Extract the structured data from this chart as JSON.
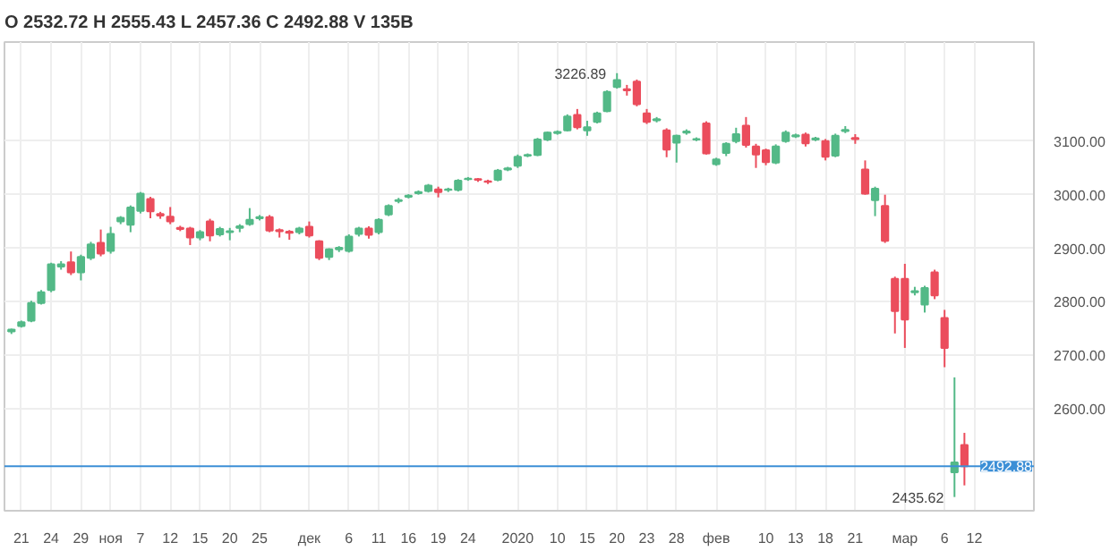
{
  "chart_data": {
    "type": "candlestick",
    "title": "O 2532.72  H 2555.43  L 2457.36  C 2492.88  V 135B",
    "categories": [
      null,
      "21",
      null,
      null,
      "24",
      null,
      null,
      "29",
      null,
      null,
      "ноя",
      null,
      null,
      "7",
      null,
      null,
      "12",
      null,
      null,
      "15",
      null,
      null,
      "20",
      null,
      null,
      "25",
      null,
      null,
      null,
      null,
      "дек",
      null,
      null,
      null,
      "6",
      null,
      null,
      "11",
      null,
      null,
      "16",
      null,
      null,
      "19",
      null,
      null,
      "24",
      null,
      null,
      null,
      null,
      "2020",
      null,
      null,
      null,
      "10",
      null,
      null,
      "15",
      null,
      null,
      "20",
      null,
      null,
      "23",
      null,
      null,
      "28",
      null,
      null,
      null,
      "фев",
      null,
      null,
      null,
      null,
      "10",
      null,
      null,
      "13",
      null,
      null,
      "18",
      null,
      null,
      "21",
      null,
      null,
      null,
      null,
      "мар",
      null,
      null,
      null,
      "6",
      null,
      null,
      "12"
    ],
    "ohlc": [
      [
        2745,
        2750,
        2740,
        2748
      ],
      [
        2755,
        2765,
        2752,
        2762
      ],
      [
        2765,
        2802,
        2762,
        2798
      ],
      [
        2798,
        2822,
        2795,
        2818
      ],
      [
        2822,
        2873,
        2818,
        2870
      ],
      [
        2866,
        2876,
        2860,
        2870
      ],
      [
        2874,
        2894,
        2850,
        2855
      ],
      [
        2855,
        2888,
        2840,
        2884
      ],
      [
        2882,
        2912,
        2878,
        2907
      ],
      [
        2910,
        2935,
        2885,
        2890
      ],
      [
        2895,
        2940,
        2890,
        2927
      ],
      [
        2950,
        2960,
        2945,
        2957
      ],
      [
        2944,
        2980,
        2930,
        2976
      ],
      [
        2970,
        3005,
        2965,
        3002
      ],
      [
        2992,
        2996,
        2956,
        2969
      ],
      [
        2964,
        2968,
        2955,
        2961
      ],
      [
        2959,
        2977,
        2945,
        2950
      ],
      [
        2938,
        2942,
        2932,
        2936
      ],
      [
        2937,
        2940,
        2906,
        2920
      ],
      [
        2920,
        2934,
        2915,
        2930
      ],
      [
        2950,
        2955,
        2913,
        2924
      ],
      [
        2926,
        2940,
        2922,
        2936
      ],
      [
        2930,
        2938,
        2915,
        2932
      ],
      [
        2938,
        2945,
        2930,
        2941
      ],
      [
        2945,
        2975,
        2942,
        2953
      ],
      [
        2956,
        2962,
        2952,
        2958
      ],
      [
        2958,
        2962,
        2930,
        2933
      ],
      [
        2934,
        2937,
        2920,
        2932
      ],
      [
        2931,
        2934,
        2916,
        2929
      ],
      [
        2930,
        2940,
        2926,
        2937
      ],
      [
        2940,
        2950,
        2920,
        2924
      ],
      [
        2913,
        2915,
        2878,
        2882
      ],
      [
        2884,
        2900,
        2878,
        2898
      ],
      [
        2898,
        2904,
        2893,
        2901
      ],
      [
        2895,
        2926,
        2892,
        2922
      ],
      [
        2927,
        2940,
        2922,
        2937
      ],
      [
        2937,
        2941,
        2918,
        2925
      ],
      [
        2930,
        2956,
        2926,
        2953
      ],
      [
        2963,
        2982,
        2960,
        2979
      ],
      [
        2988,
        2994,
        2984,
        2990
      ],
      [
        2996,
        3001,
        2993,
        2998
      ],
      [
        3003,
        3008,
        3000,
        3005
      ],
      [
        3007,
        3020,
        3004,
        3017
      ],
      [
        3010,
        3015,
        2995,
        3005
      ],
      [
        3009,
        3013,
        3005,
        3010
      ],
      [
        3009,
        3029,
        3006,
        3026
      ],
      [
        3029,
        3033,
        3026,
        3030
      ],
      [
        3029,
        3031,
        3024,
        3028
      ],
      [
        3025,
        3028,
        3020,
        3024
      ],
      [
        3028,
        3048,
        3025,
        3045
      ],
      [
        3047,
        3052,
        3044,
        3049
      ],
      [
        3054,
        3075,
        3050,
        3071
      ],
      [
        3073,
        3077,
        3070,
        3074
      ],
      [
        3074,
        3106,
        3072,
        3103
      ],
      [
        3103,
        3118,
        3100,
        3116
      ],
      [
        3115,
        3120,
        3112,
        3117
      ],
      [
        3120,
        3150,
        3118,
        3146
      ],
      [
        3149,
        3160,
        3122,
        3126
      ],
      [
        3120,
        3138,
        3110,
        3126
      ],
      [
        3136,
        3155,
        3133,
        3152
      ],
      [
        3156,
        3195,
        3154,
        3192
      ],
      [
        3201,
        3226.89,
        3198,
        3214
      ],
      [
        3197,
        3205,
        3185,
        3195
      ],
      [
        3211,
        3215,
        3165,
        3169
      ],
      [
        3152,
        3160,
        3132,
        3136
      ],
      [
        3139,
        3145,
        3135,
        3141
      ],
      [
        3120,
        3124,
        3070,
        3084
      ],
      [
        3097,
        3112,
        3060,
        3110
      ],
      [
        3116,
        3122,
        3112,
        3118
      ],
      [
        3103,
        3107,
        3100,
        3104
      ],
      [
        3133,
        3137,
        3075,
        3077
      ],
      [
        3057,
        3069,
        3054,
        3066
      ],
      [
        3078,
        3098,
        3072,
        3095
      ],
      [
        3100,
        3125,
        3096,
        3113
      ],
      [
        3129,
        3145,
        3088,
        3093
      ],
      [
        3090,
        3095,
        3050,
        3075
      ],
      [
        3083,
        3086,
        3055,
        3061
      ],
      [
        3060,
        3094,
        3057,
        3090
      ],
      [
        3100,
        3120,
        3097,
        3116
      ],
      [
        3109,
        3114,
        3106,
        3111
      ],
      [
        3112,
        3116,
        3090,
        3096
      ],
      [
        3103,
        3108,
        3100,
        3105
      ],
      [
        3100,
        3104,
        3064,
        3071
      ],
      [
        3073,
        3114,
        3070,
        3110
      ],
      [
        3119,
        3128,
        3115,
        3121
      ],
      [
        3106,
        3113,
        3095,
        3104
      ],
      [
        3047,
        3064,
        3000,
        3002
      ],
      [
        2990,
        3015,
        2960,
        3011
      ],
      [
        2979,
        3000,
        2910,
        2914
      ],
      [
        2843,
        2847,
        2741,
        2783
      ],
      [
        2843,
        2871,
        2714,
        2767
      ],
      [
        2818,
        2828,
        2812,
        2820
      ],
      [
        2795,
        2830,
        2780,
        2826
      ],
      [
        2855,
        2860,
        2805,
        2812
      ],
      [
        2770,
        2785,
        2678,
        2714
      ],
      [
        2482,
        2659,
        2435.62,
        2500
      ],
      [
        2532.72,
        2555.43,
        2457.36,
        2492.88
      ],
      null
    ],
    "colors": [
      "#53b987",
      "#53b987",
      "#53b987",
      "#53b987",
      "#53b987",
      "#53b987",
      "#eb4d5c",
      "#53b987",
      "#53b987",
      "#eb4d5c",
      "#53b987",
      "#53b987",
      "#53b987",
      "#53b987",
      "#eb4d5c",
      "#eb4d5c",
      "#eb4d5c",
      "#eb4d5c",
      "#eb4d5c",
      "#53b987",
      "#eb4d5c",
      "#53b987",
      "#53b987",
      "#53b987",
      "#53b987",
      "#53b987",
      "#eb4d5c",
      "#eb4d5c",
      "#eb4d5c",
      "#53b987",
      "#eb4d5c",
      "#eb4d5c",
      "#53b987",
      "#53b987",
      "#53b987",
      "#53b987",
      "#eb4d5c",
      "#53b987",
      "#53b987",
      "#53b987",
      "#53b987",
      "#53b987",
      "#53b987",
      "#eb4d5c",
      "#53b987",
      "#53b987",
      "#53b987",
      "#eb4d5c",
      "#eb4d5c",
      "#53b987",
      "#53b987",
      "#53b987",
      "#53b987",
      "#53b987",
      "#53b987",
      "#53b987",
      "#53b987",
      "#eb4d5c",
      "#53b987",
      "#53b987",
      "#53b987",
      "#53b987",
      "#eb4d5c",
      "#eb4d5c",
      "#eb4d5c",
      "#53b987",
      "#eb4d5c",
      "#53b987",
      "#53b987",
      "#53b987",
      "#eb4d5c",
      "#53b987",
      "#53b987",
      "#53b987",
      "#eb4d5c",
      "#eb4d5c",
      "#eb4d5c",
      "#53b987",
      "#53b987",
      "#53b987",
      "#eb4d5c",
      "#53b987",
      "#eb4d5c",
      "#53b987",
      "#53b987",
      "#eb4d5c",
      "#eb4d5c",
      "#53b987",
      "#eb4d5c",
      "#eb4d5c",
      "#eb4d5c",
      "#53b987",
      "#53b987",
      "#eb4d5c",
      "#eb4d5c",
      "#53b987",
      "#eb4d5c",
      null
    ],
    "ylim": [
      2410,
      3285
    ],
    "yticks": [
      {
        "value": 2600,
        "label": "2600.00"
      },
      {
        "value": 2700,
        "label": "2700.00"
      },
      {
        "value": 2800,
        "label": "2800.00"
      },
      {
        "value": 2900,
        "label": "2900.00"
      },
      {
        "value": 3000,
        "label": "3000.00"
      },
      {
        "value": 3100,
        "label": "3100.00"
      }
    ],
    "ref_lines": [
      {
        "axis": "y",
        "value": 2492.88,
        "label": "2492.88",
        "color": "#3c8fd6"
      }
    ],
    "annotations": [
      "3226.89",
      "2435.62"
    ],
    "grid": true
  }
}
